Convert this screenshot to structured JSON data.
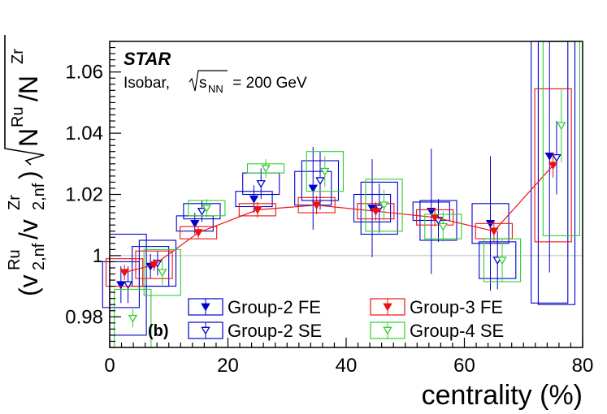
{
  "chart_data": {
    "type": "scatter",
    "experiment": "STAR",
    "subtitle_prefix": "Isobar, ",
    "subtitle_sqrt": "s",
    "subtitle_sub": "NN",
    "subtitle_value": " = 200 GeV",
    "panel_label": "(b)",
    "xlabel": "centrality (%)",
    "ylabel": {
      "open_paren": "(",
      "v": "v",
      "sup_ru": "Ru",
      "sub_1": "2,nf",
      "slash": "/",
      "v2": "v",
      "sup_zr": "Zr",
      "sub_2": "2,nf",
      "close_paren": ")",
      "N1": "N",
      "N1_sup": "Ru",
      "sep": "/",
      "N2": "N",
      "N2_sup": "Zr"
    },
    "xlim": [
      0,
      80
    ],
    "ylim": [
      0.97,
      1.07
    ],
    "xticks": [
      0,
      20,
      40,
      60,
      80
    ],
    "xtick_labels": [
      "0",
      "20",
      "40",
      "60",
      "80"
    ],
    "yticks": [
      0.98,
      1.0,
      1.02,
      1.04,
      1.06
    ],
    "ytick_labels": [
      "0.98",
      "1",
      "1.02",
      "1.04",
      "1.06"
    ],
    "reference_line": 1.0,
    "series": [
      {
        "name": "Group-2 FE",
        "color": "#0000cc",
        "marker": "filled-triangle-down",
        "offset": -0.6,
        "x": [
          2.5,
          7.5,
          15,
          25,
          35,
          45,
          55,
          65,
          75
        ],
        "y": [
          0.9905,
          0.9965,
          1.0105,
          1.0185,
          1.022,
          1.0155,
          1.0145,
          1.0105,
          1.0325
        ],
        "stat": [
          0.006,
          0.004,
          0.0035,
          0.0045,
          0.0135,
          0.016,
          0.0205,
          0.022,
          0.038
        ],
        "sys": [
          0.0075,
          0.0065,
          0.0025,
          0.0025,
          0.0055,
          0.0045,
          0.003,
          0.0065,
          0.048
        ]
      },
      {
        "name": "Group-2 SE",
        "color": "#0000cc",
        "marker": "open-triangle-down",
        "offset": 0.6,
        "x": [
          2.5,
          7.5,
          15,
          25,
          35,
          45,
          55,
          65,
          75
        ],
        "y": [
          0.9905,
          0.9975,
          1.0145,
          1.0235,
          1.0245,
          1.0155,
          1.0115,
          0.9985,
          1.032
        ],
        "stat": [
          0.006,
          0.004,
          0.0035,
          0.005,
          0.0095,
          0.008,
          0.007,
          0.0095,
          0.012
        ],
        "sys": [
          0.0165,
          0.0075,
          0.0025,
          0.0035,
          0.0065,
          0.0085,
          0.0065,
          0.006,
          0.048
        ]
      },
      {
        "name": "Group-3 FE",
        "color": "#ee1111",
        "marker": "filled-triangle-down",
        "offset": 0,
        "line": true,
        "x": [
          2.5,
          7.5,
          15,
          25,
          35,
          45,
          55,
          65,
          75
        ],
        "y": [
          0.9945,
          0.997,
          1.0075,
          1.015,
          1.0165,
          1.0145,
          1.0125,
          1.008,
          1.0295
        ],
        "stat": [
          0.0025,
          0.002,
          0.002,
          0.0025,
          0.003,
          0.003,
          0.003,
          0.0035,
          0.004
        ],
        "sys": [
          0.0045,
          0.0045,
          0.002,
          0.002,
          0.0025,
          0.0025,
          0.0025,
          0.0025,
          0.025
        ]
      },
      {
        "name": "Group-4 SE",
        "color": "#33cc33",
        "marker": "open-triangle-down",
        "offset": 1.4,
        "x": [
          2.5,
          7.5,
          15,
          25,
          35,
          45,
          55,
          65,
          75
        ],
        "y": [
          0.9795,
          0.9945,
          1.0155,
          1.0285,
          1.0275,
          1.0165,
          1.0095,
          0.9985,
          1.0425
        ],
        "stat": [
          0.003,
          0.004,
          0.003,
          0.003,
          0.005,
          0.005,
          0.005,
          0.007,
          0.012
        ],
        "sys": [
          0.0095,
          0.0075,
          0.0025,
          0.0015,
          0.0065,
          0.0085,
          0.004,
          0.007,
          0.036
        ]
      }
    ],
    "legend_order": [
      "Group-2 FE",
      "Group-3 FE",
      "Group-2 SE",
      "Group-4 SE"
    ]
  }
}
